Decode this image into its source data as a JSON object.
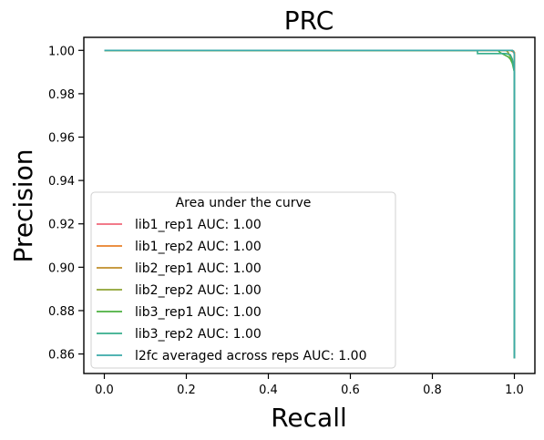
{
  "chart_data": {
    "type": "line",
    "title": "PRC",
    "xlabel": "Recall",
    "ylabel": "Precision",
    "xlim": [
      -0.05,
      1.05
    ],
    "ylim": [
      0.851,
      1.006
    ],
    "xticks": [
      0.0,
      0.2,
      0.4,
      0.6,
      0.8,
      1.0
    ],
    "xtick_labels": [
      "0.0",
      "0.2",
      "0.4",
      "0.6",
      "0.8",
      "1.0"
    ],
    "yticks": [
      0.86,
      0.88,
      0.9,
      0.92,
      0.94,
      0.96,
      0.98,
      1.0
    ],
    "ytick_labels": [
      "0.86",
      "0.88",
      "0.90",
      "0.92",
      "0.94",
      "0.96",
      "0.98",
      "1.00"
    ],
    "grid": false,
    "legend": {
      "title": "Area under the curve",
      "placement": "lower-left"
    },
    "series": [
      {
        "name": "lib1_rep1 AUC: 1.00",
        "color": "#f0677a",
        "points": [
          [
            0,
            1.0
          ],
          [
            0.99,
            1.0
          ],
          [
            0.995,
            0.9995
          ],
          [
            0.9995,
            0.999
          ],
          [
            1.0,
            0.995
          ],
          [
            1.0,
            0.858
          ]
        ]
      },
      {
        "name": "lib1_rep2 AUC: 1.00",
        "color": "#e8812a",
        "points": [
          [
            0,
            1.0
          ],
          [
            0.995,
            1.0
          ],
          [
            0.998,
            0.9997
          ],
          [
            1.0,
            0.999
          ],
          [
            1.0,
            0.858
          ]
        ]
      },
      {
        "name": "lib2_rep1 AUC: 1.00",
        "color": "#c08e2a",
        "points": [
          [
            0,
            1.0
          ],
          [
            0.99,
            1.0
          ],
          [
            0.995,
            0.9996
          ],
          [
            1.0,
            0.999
          ],
          [
            1.0,
            0.858
          ]
        ]
      },
      {
        "name": "lib2_rep2 AUC: 1.00",
        "color": "#8ea332",
        "points": [
          [
            0,
            1.0
          ],
          [
            0.98,
            1.0
          ],
          [
            0.985,
            0.999
          ],
          [
            0.99,
            0.997
          ],
          [
            0.995,
            0.995
          ],
          [
            0.998,
            0.992
          ],
          [
            1.0,
            0.99
          ],
          [
            1.0,
            0.858
          ]
        ]
      },
      {
        "name": "lib3_rep1 AUC: 1.00",
        "color": "#4bb03f",
        "points": [
          [
            0,
            1.0
          ],
          [
            0.96,
            1.0
          ],
          [
            0.965,
            0.999
          ],
          [
            0.975,
            0.998
          ],
          [
            0.985,
            0.997
          ],
          [
            0.99,
            0.996
          ],
          [
            0.995,
            0.994
          ],
          [
            1.0,
            0.99
          ],
          [
            1.0,
            0.858
          ]
        ]
      },
      {
        "name": "lib3_rep2 AUC: 1.00",
        "color": "#36ad8c",
        "points": [
          [
            0,
            1.0
          ],
          [
            0.91,
            1.0
          ],
          [
            0.91,
            0.9985
          ],
          [
            0.98,
            0.9985
          ],
          [
            0.99,
            0.998
          ],
          [
            0.995,
            0.996
          ],
          [
            1.0,
            0.99
          ],
          [
            1.0,
            0.858
          ]
        ]
      },
      {
        "name": "l2fc averaged across reps AUC: 1.00",
        "color": "#3aa9a8",
        "points": [
          [
            0,
            1.0
          ],
          [
            0.995,
            1.0
          ],
          [
            0.998,
            0.9995
          ],
          [
            1.0,
            0.998
          ],
          [
            1.0,
            0.858
          ]
        ]
      }
    ]
  }
}
